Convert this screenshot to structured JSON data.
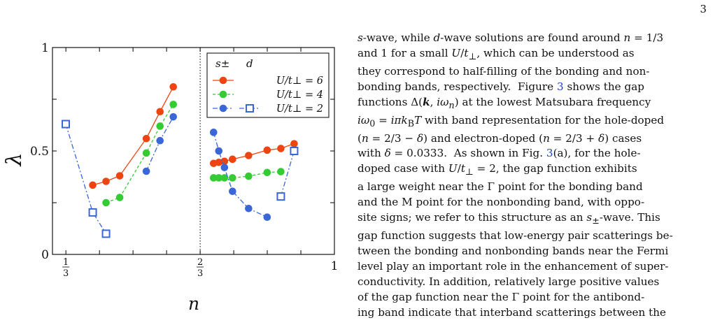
{
  "page_number": "3",
  "figure": {
    "y_axis_symbol": "λ",
    "x_axis_symbol": "n",
    "y_ticks": [
      "0",
      "0.5",
      "1"
    ],
    "x_ticks": [
      {
        "num": "1",
        "den": "3"
      },
      {
        "num": "2",
        "den": "3"
      },
      {
        "whole": "1"
      }
    ],
    "legend": {
      "header_left": "s±",
      "header_right": "d",
      "rows": [
        "U/t⊥ = 6",
        "U/t⊥ = 4",
        "U/t⊥ = 2"
      ]
    },
    "colors": {
      "u6": "#ee4411",
      "u4": "#33cc33",
      "u2": "#3a66d8",
      "frame": "#000000"
    }
  },
  "chart_data": {
    "type": "line",
    "xlim": [
      0.3,
      1.0
    ],
    "ylim": [
      0,
      1
    ],
    "x_divider": 0.6667,
    "series": [
      {
        "key": "u6",
        "name": "U/t⊥ = 6",
        "marker": "filled-circle",
        "style": "solid",
        "segments": [
          [
            [
              0.4,
              0.335
            ],
            [
              0.433,
              0.353
            ],
            [
              0.467,
              0.38
            ],
            [
              0.533,
              0.56
            ],
            [
              0.567,
              0.69
            ],
            [
              0.6,
              0.81
            ]
          ],
          [
            [
              0.7,
              0.44
            ],
            [
              0.713,
              0.445
            ],
            [
              0.727,
              0.45
            ],
            [
              0.747,
              0.46
            ],
            [
              0.787,
              0.478
            ],
            [
              0.833,
              0.504
            ],
            [
              0.867,
              0.512
            ],
            [
              0.9,
              0.535
            ]
          ]
        ]
      },
      {
        "key": "u4",
        "name": "U/t⊥ = 4",
        "marker": "filled-circle",
        "style": "dashed",
        "segments": [
          [
            [
              0.433,
              0.25
            ],
            [
              0.467,
              0.275
            ],
            [
              0.533,
              0.49
            ],
            [
              0.567,
              0.62
            ],
            [
              0.6,
              0.725
            ]
          ],
          [
            [
              0.7,
              0.37
            ],
            [
              0.713,
              0.37
            ],
            [
              0.727,
              0.37
            ],
            [
              0.747,
              0.37
            ],
            [
              0.787,
              0.378
            ],
            [
              0.833,
              0.396
            ],
            [
              0.867,
              0.4
            ]
          ]
        ]
      },
      {
        "key": "u2",
        "name": "U/t⊥ = 2",
        "marker": "filled-circle/open-square",
        "style": "dashdot",
        "segments": [
          [
            [
              0.333,
              0.63,
              "s"
            ],
            [
              0.4,
              0.203,
              "s"
            ],
            [
              0.433,
              0.1,
              "s"
            ]
          ],
          [
            [
              0.533,
              0.402,
              "d"
            ],
            [
              0.567,
              0.55,
              "d"
            ],
            [
              0.6,
              0.665,
              "d"
            ]
          ],
          [
            [
              0.7,
              0.59,
              "d"
            ],
            [
              0.713,
              0.5,
              "d"
            ],
            [
              0.727,
              0.42,
              "d"
            ],
            [
              0.747,
              0.305,
              "d"
            ],
            [
              0.787,
              0.222,
              "d"
            ],
            [
              0.833,
              0.18,
              "d"
            ]
          ],
          [
            [
              0.867,
              0.28,
              "s"
            ],
            [
              0.9,
              0.5,
              "s"
            ]
          ]
        ]
      }
    ]
  },
  "text_lines": [
    "s-wave, while d-wave solutions are found around n = 1/3",
    "and 1 for a small U/t⊥, which can be understood as",
    "they correspond to half-filling of the bonding and non-",
    "bonding bands, respectively.  Figure 3 shows the gap",
    "functions Δ(k, iωn) at the lowest Matsubara frequency",
    "iω0 = iπkBT with band representation for the hole-doped",
    "(n = 2/3 − δ) and electron-doped (n = 2/3 + δ) cases",
    "with δ = 0.0333.  As shown in Fig. 3(a), for the hole-",
    "doped case with U/t⊥ = 2, the gap function exhibits",
    "a large weight near the Γ point for the bonding band",
    "and the M point for the nonbonding band, with oppo-",
    "site signs; we refer to this structure as an s±-wave. This",
    "gap function suggests that low-energy pair scatterings be-",
    "tween the bonding and nonbonding bands near the Fermi",
    "level play an important role in the enhancement of super-",
    "conductivity. In addition, relatively large positive values",
    "of the gap function near the Γ point for the antibond-",
    "ing band indicate that interband scatterings between the"
  ]
}
